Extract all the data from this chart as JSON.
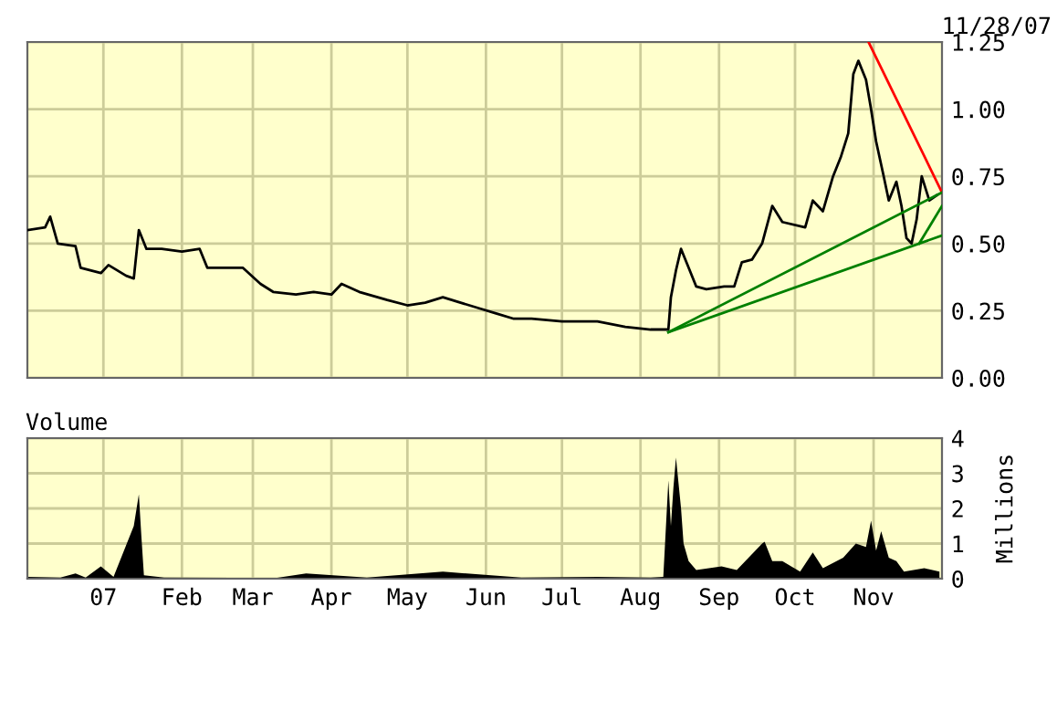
{
  "chart_data": [
    {
      "type": "line",
      "annotations": [
        "11/28/07"
      ],
      "xlim": [
        "2006-12-02",
        "2007-11-28"
      ],
      "ylim": [
        0,
        1.25
      ],
      "yticks": [
        {
          "value": 0,
          "label": "0.00"
        },
        {
          "value": 0.25,
          "label": "0.25"
        },
        {
          "value": 0.5,
          "label": "0.50"
        },
        {
          "value": 0.75,
          "label": "0.75"
        },
        {
          "value": 1.0,
          "label": "1.00"
        },
        {
          "value": 1.25,
          "label": "1.25"
        }
      ],
      "xticks": [
        {
          "value": "2007-01-01",
          "label": null
        },
        {
          "value": "2007-02-01",
          "label": null
        },
        {
          "value": "2007-03-01",
          "label": null
        },
        {
          "value": "2007-04-01",
          "label": null
        },
        {
          "value": "2007-05-01",
          "label": null
        },
        {
          "value": "2007-06-01",
          "label": null
        },
        {
          "value": "2007-07-01",
          "label": null
        },
        {
          "value": "2007-08-01",
          "label": null
        },
        {
          "value": "2007-09-01",
          "label": null
        },
        {
          "value": "2007-10-01",
          "label": null
        },
        {
          "value": "2007-11-01",
          "label": null
        }
      ],
      "tick_labels": "y",
      "grid": true,
      "series": [
        {
          "color": "#000000",
          "x": [
            "2006-12-02",
            "2006-12-09",
            "2006-12-11",
            "2006-12-14",
            "2006-12-21",
            "2006-12-23",
            "2006-12-31",
            "2007-01-03",
            "2007-01-10",
            "2007-01-13",
            "2007-01-15",
            "2007-01-18",
            "2007-01-24",
            "2007-02-01",
            "2007-02-08",
            "2007-02-11",
            "2007-02-18",
            "2007-02-25",
            "2007-03-04",
            "2007-03-09",
            "2007-03-18",
            "2007-03-25",
            "2007-04-01",
            "2007-04-05",
            "2007-04-12",
            "2007-04-23",
            "2007-05-01",
            "2007-05-08",
            "2007-05-15",
            "2007-05-22",
            "2007-05-29",
            "2007-06-05",
            "2007-06-12",
            "2007-06-19",
            "2007-07-01",
            "2007-07-15",
            "2007-07-26",
            "2007-08-05",
            "2007-08-12",
            "2007-08-13",
            "2007-08-15",
            "2007-08-17",
            "2007-08-20",
            "2007-08-23",
            "2007-08-27",
            "2007-09-03",
            "2007-09-07",
            "2007-09-10",
            "2007-09-14",
            "2007-09-18",
            "2007-09-22",
            "2007-09-26",
            "2007-10-05",
            "2007-10-08",
            "2007-10-12",
            "2007-10-16",
            "2007-10-19",
            "2007-10-22",
            "2007-10-24",
            "2007-10-26",
            "2007-10-29",
            "2007-10-31",
            "2007-11-02",
            "2007-11-05",
            "2007-11-07",
            "2007-11-10",
            "2007-11-12",
            "2007-11-14",
            "2007-11-16",
            "2007-11-18",
            "2007-11-20",
            "2007-11-23",
            "2007-11-26"
          ],
          "values": [
            0.55,
            0.56,
            0.6,
            0.5,
            0.49,
            0.41,
            0.39,
            0.42,
            0.38,
            0.37,
            0.55,
            0.48,
            0.48,
            0.47,
            0.48,
            0.41,
            0.41,
            0.41,
            0.35,
            0.32,
            0.31,
            0.32,
            0.31,
            0.35,
            0.32,
            0.29,
            0.27,
            0.28,
            0.3,
            0.28,
            0.26,
            0.24,
            0.22,
            0.22,
            0.21,
            0.21,
            0.19,
            0.18,
            0.18,
            0.3,
            0.4,
            0.48,
            0.41,
            0.34,
            0.33,
            0.34,
            0.34,
            0.43,
            0.44,
            0.5,
            0.64,
            0.58,
            0.56,
            0.66,
            0.62,
            0.75,
            0.82,
            0.91,
            1.13,
            1.18,
            1.11,
            1.0,
            0.88,
            0.75,
            0.66,
            0.73,
            0.64,
            0.52,
            0.5,
            0.59,
            0.75,
            0.66,
            0.68
          ]
        },
        {
          "color": "#ff0000",
          "x": [
            "2007-10-30",
            "2007-11-28"
          ],
          "values": [
            1.25,
            0.69
          ]
        },
        {
          "color": "#008000",
          "x": [
            "2007-08-12",
            "2007-11-28"
          ],
          "values": [
            0.17,
            0.69
          ]
        },
        {
          "color": "#008000",
          "x": [
            "2007-08-12",
            "2007-11-28"
          ],
          "values": [
            0.17,
            0.53
          ]
        },
        {
          "color": "#008000",
          "x": [
            "2007-11-19",
            "2007-11-28"
          ],
          "values": [
            0.5,
            0.64
          ]
        }
      ]
    },
    {
      "type": "area",
      "title": "Volume",
      "ylabel": "Millions",
      "xlim": [
        "2006-12-02",
        "2007-11-28"
      ],
      "ylim": [
        0,
        4
      ],
      "yticks": [
        0,
        1,
        2,
        3,
        4
      ],
      "xticks": [
        {
          "value": "2007-01-01",
          "label": "07"
        },
        {
          "value": "2007-02-01",
          "label": "Feb"
        },
        {
          "value": "2007-03-01",
          "label": "Mar"
        },
        {
          "value": "2007-04-01",
          "label": "Apr"
        },
        {
          "value": "2007-05-01",
          "label": "May"
        },
        {
          "value": "2007-06-01",
          "label": "Jun"
        },
        {
          "value": "2007-07-01",
          "label": "Jul"
        },
        {
          "value": "2007-08-01",
          "label": "Aug"
        },
        {
          "value": "2007-09-01",
          "label": "Sep"
        },
        {
          "value": "2007-10-01",
          "label": "Oct"
        },
        {
          "value": "2007-11-01",
          "label": "Nov"
        }
      ],
      "grid": true,
      "series": [
        {
          "color": "#000000",
          "x": [
            "2006-12-02",
            "2006-12-15",
            "2006-12-21",
            "2006-12-25",
            "2006-12-31",
            "2007-01-05",
            "2007-01-13",
            "2007-01-15",
            "2007-01-16",
            "2007-01-17",
            "2007-01-25",
            "2007-03-10",
            "2007-03-22",
            "2007-04-15",
            "2007-05-15",
            "2007-06-15",
            "2007-07-15",
            "2007-08-05",
            "2007-08-10",
            "2007-08-12",
            "2007-08-13",
            "2007-08-14",
            "2007-08-15",
            "2007-08-17",
            "2007-08-18",
            "2007-08-20",
            "2007-08-23",
            "2007-09-02",
            "2007-09-08",
            "2007-09-18",
            "2007-09-19",
            "2007-09-22",
            "2007-09-26",
            "2007-10-03",
            "2007-10-08",
            "2007-10-12",
            "2007-10-20",
            "2007-10-25",
            "2007-10-29",
            "2007-10-31",
            "2007-11-02",
            "2007-11-04",
            "2007-11-07",
            "2007-11-10",
            "2007-11-13",
            "2007-11-21",
            "2007-11-27"
          ],
          "values": [
            0.05,
            0.03,
            0.15,
            0.03,
            0.35,
            0.05,
            1.5,
            2.4,
            1.2,
            0.1,
            0.03,
            0.02,
            0.15,
            0.03,
            0.2,
            0.03,
            0.05,
            0.03,
            0.05,
            2.8,
            1.5,
            2.6,
            3.45,
            2.0,
            1.0,
            0.5,
            0.25,
            0.35,
            0.25,
            1.0,
            1.05,
            0.5,
            0.5,
            0.2,
            0.75,
            0.3,
            0.6,
            1.0,
            0.9,
            1.65,
            0.8,
            1.35,
            0.6,
            0.5,
            0.2,
            0.3,
            0.2
          ]
        }
      ]
    }
  ]
}
